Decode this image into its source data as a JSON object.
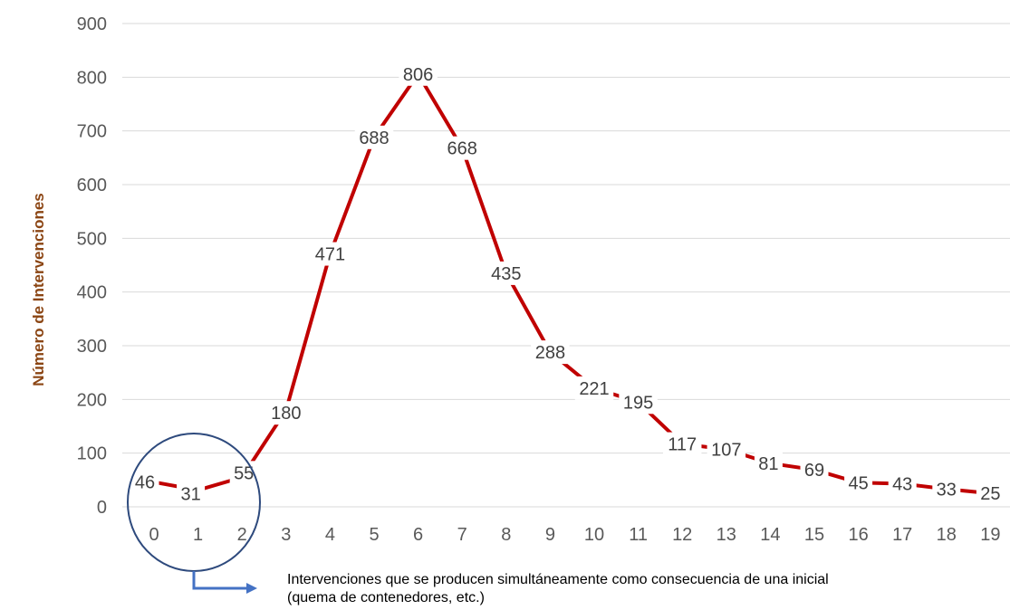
{
  "chart_data": {
    "type": "line",
    "title": "",
    "xlabel": "",
    "ylabel": "Número de Intervenciones",
    "categories": [
      "0",
      "1",
      "2",
      "3",
      "4",
      "5",
      "6",
      "7",
      "8",
      "9",
      "10",
      "11",
      "12",
      "13",
      "14",
      "15",
      "16",
      "17",
      "18",
      "19"
    ],
    "values": [
      46,
      31,
      55,
      180,
      471,
      688,
      806,
      668,
      435,
      288,
      221,
      195,
      117,
      107,
      81,
      69,
      45,
      43,
      33,
      25
    ],
    "data_labels": [
      "46",
      "31",
      "55",
      "180",
      "471",
      "688",
      "806",
      "668",
      "435",
      "288",
      "221",
      "195",
      "117",
      "107",
      "81",
      "69",
      "45",
      "43",
      "33",
      "25"
    ],
    "y_ticks": [
      "0",
      "100",
      "200",
      "300",
      "400",
      "500",
      "600",
      "700",
      "800",
      "900"
    ],
    "ylim": [
      0,
      900
    ],
    "grid": true,
    "legend": "none",
    "line_color": "#C00000",
    "annotation": {
      "text_line1": "Intervenciones que se producen simultáneamente como consecuencia de una inicial",
      "text_line2": "(quema de contenedores, etc.)",
      "circle_color": "#2E4A7D",
      "arrow_color": "#4472C4"
    }
  }
}
